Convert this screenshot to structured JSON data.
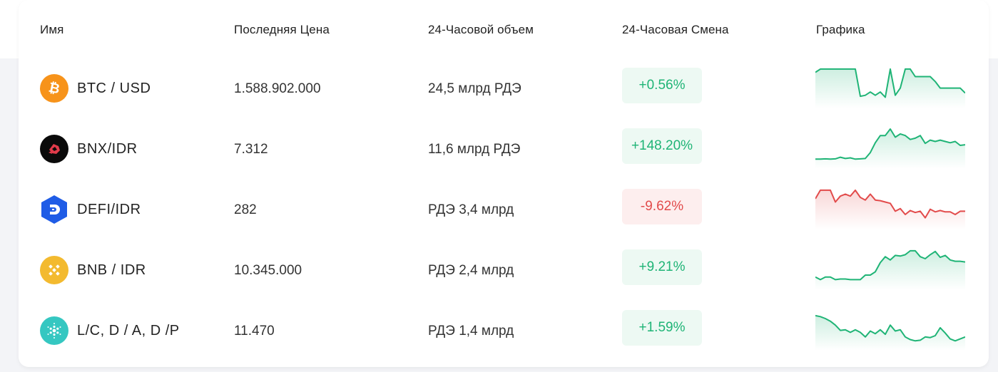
{
  "table": {
    "headers": {
      "name": "Имя",
      "last_price": "Последняя Цена",
      "volume": "24-Часовой объем",
      "change": "24-Часовая Смена",
      "chart": "Графика"
    },
    "rows": [
      {
        "pair": "BTC / USD",
        "icon": "bitcoin-icon",
        "icon_color": "#f7931a",
        "price": "1.588.902.000",
        "volume": "24,5 млрд РДЭ",
        "change": "+0.56%",
        "direction": "up",
        "sparkline": [
          88,
          98,
          98,
          98,
          98,
          98,
          98,
          98,
          98,
          15,
          18,
          28,
          18,
          28,
          12,
          98,
          18,
          40,
          98,
          98,
          75,
          75,
          75,
          75,
          60,
          40,
          40,
          40,
          40,
          40,
          25
        ]
      },
      {
        "pair": "BNX/IDR",
        "icon": "bnx-icon",
        "icon_color": "#0a0a0a",
        "price": "7.312",
        "volume": "11,6 млрд РДЭ",
        "change": "+148.20%",
        "direction": "up",
        "sparkline": [
          8,
          8,
          9,
          8,
          9,
          14,
          10,
          12,
          8,
          9,
          10,
          28,
          58,
          80,
          80,
          100,
          75,
          85,
          80,
          68,
          72,
          80,
          56,
          66,
          62,
          66,
          62,
          58,
          62,
          50,
          52
        ]
      },
      {
        "pair": "DEFI/IDR",
        "icon": "defichain-icon",
        "icon_color": "#1f5ce6",
        "price": "282",
        "volume": "РДЭ 3,4 млрд",
        "change": "-9.62%",
        "direction": "down",
        "sparkline": [
          72,
          98,
          98,
          98,
          62,
          80,
          86,
          80,
          98,
          76,
          68,
          86,
          68,
          66,
          62,
          58,
          34,
          42,
          24,
          36,
          30,
          34,
          14,
          40,
          32,
          36,
          32,
          32,
          24,
          34,
          34
        ]
      },
      {
        "pair": "BNB / IDR",
        "icon": "bnb-icon",
        "icon_color": "#f3ba2f",
        "price": "10.345.000",
        "volume": "РДЭ 2,4 млрд",
        "change": "+9.21%",
        "direction": "up",
        "sparkline": [
          18,
          10,
          18,
          18,
          10,
          12,
          12,
          10,
          10,
          10,
          24,
          24,
          34,
          62,
          80,
          70,
          84,
          82,
          86,
          98,
          98,
          80,
          74,
          86,
          96,
          78,
          84,
          70,
          66,
          66,
          64
        ]
      },
      {
        "pair": "L/C, D / A, D /P",
        "icon": "cardano-icon",
        "icon_color": "#35c7c1",
        "price": "11.470",
        "volume": "РДЭ 1,4 млрд",
        "change": "+1.59%",
        "direction": "up",
        "sparkline": [
          85,
          82,
          76,
          68,
          56,
          40,
          42,
          34,
          42,
          34,
          20,
          38,
          30,
          42,
          28,
          56,
          38,
          42,
          20,
          12,
          8,
          10,
          20,
          18,
          24,
          48,
          32,
          14,
          8,
          14,
          20
        ]
      }
    ]
  },
  "colors": {
    "up": "#1fb476",
    "down": "#e24b4b"
  }
}
